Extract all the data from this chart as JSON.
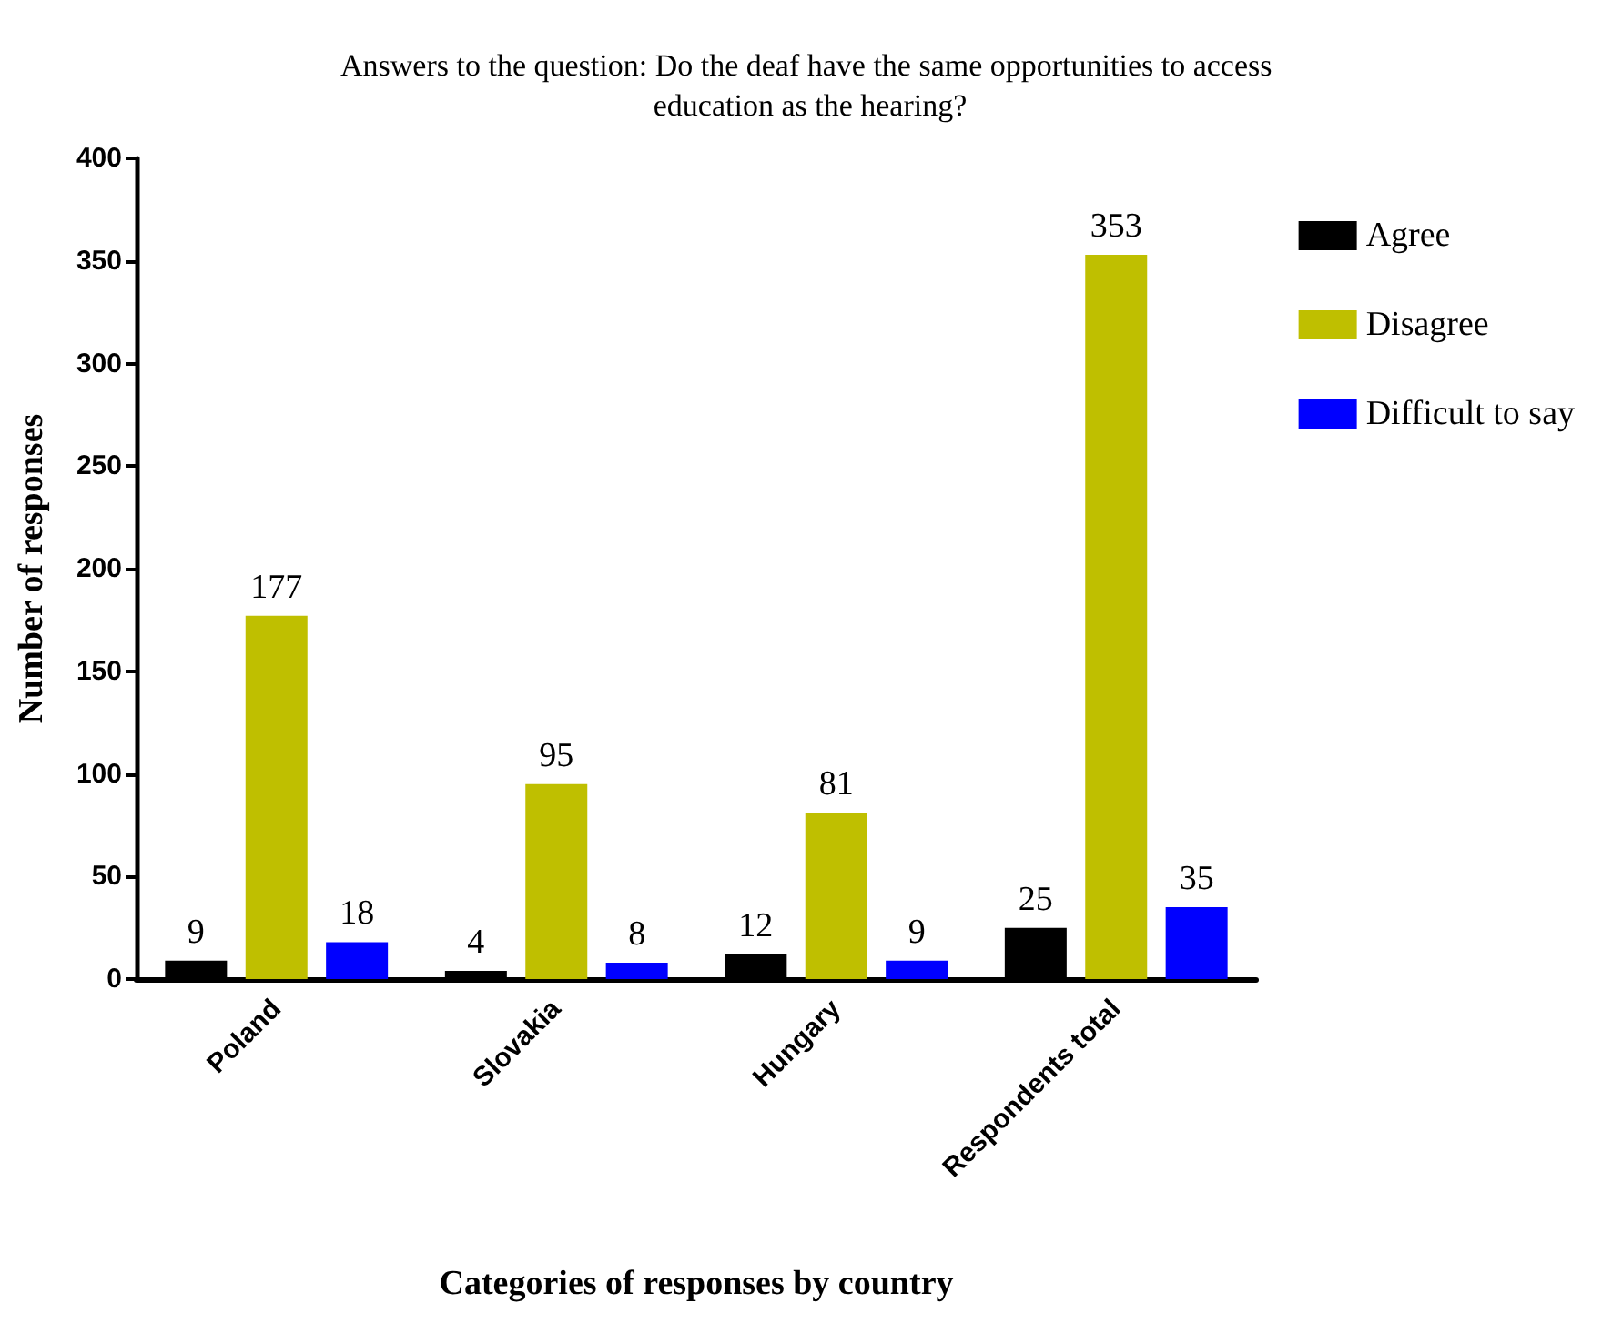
{
  "chart_data": {
    "type": "bar",
    "title": "Answers to the question: Do the deaf have the same opportunities to access education as the hearing?",
    "xlabel": "Categories of responses by country",
    "ylabel": "Number of responses",
    "categories": [
      "Poland",
      "Slovakia",
      "Hungary",
      "Respondents total"
    ],
    "series": [
      {
        "name": "Agree",
        "color": "#000000",
        "values": [
          9,
          4,
          12,
          25
        ]
      },
      {
        "name": "Disagree",
        "color": "#bfbf00",
        "values": [
          177,
          95,
          81,
          353
        ]
      },
      {
        "name": "Difficult to say",
        "color": "#0000ff",
        "values": [
          18,
          8,
          9,
          35
        ]
      }
    ],
    "ylim": [
      0,
      400
    ],
    "yticks": [
      0,
      50,
      100,
      150,
      200,
      250,
      300,
      350,
      400
    ],
    "grid": false,
    "legend": "top right",
    "data_labels": true
  }
}
